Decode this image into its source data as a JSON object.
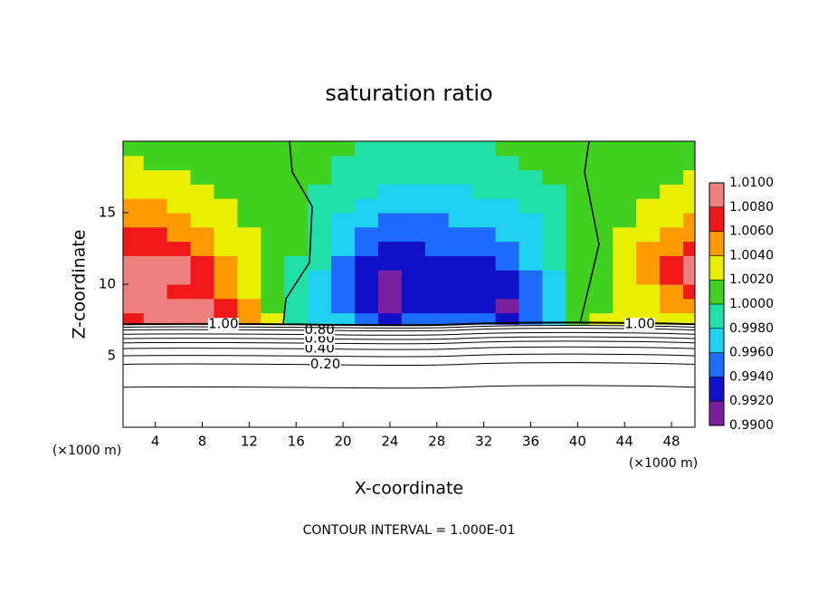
{
  "chart_data": {
    "type": "contour",
    "title": "saturation ratio",
    "x_label": "X-coordinate",
    "y_label": "Z-coordinate",
    "x_unit": "(×1000 m)",
    "footer": "CONTOUR INTERVAL = 1.000E-01",
    "xlim": [
      1.25,
      50
    ],
    "ylim": [
      0,
      20
    ],
    "xticks": [
      4,
      8,
      12,
      16,
      20,
      24,
      28,
      32,
      36,
      40,
      44,
      48
    ],
    "yticks": [
      5,
      10,
      15
    ],
    "x_edges": [
      1.25,
      3,
      5,
      7,
      9,
      11,
      13,
      15,
      17,
      19,
      21,
      23,
      25,
      27,
      29,
      31,
      33,
      35,
      37,
      39,
      41,
      43,
      45,
      47,
      49,
      50
    ],
    "z_edges": [
      7.2,
      8,
      9,
      10,
      11,
      12,
      13,
      14,
      15,
      16,
      17,
      18,
      19,
      20
    ],
    "field": [
      [
        1.007,
        1.009,
        1.009,
        1.008,
        1.007,
        1.005,
        1.002,
        0.999,
        0.997,
        0.996,
        0.994,
        0.993,
        0.994,
        0.995,
        0.995,
        0.994,
        0.993,
        0.995,
        0.997,
        1.0,
        1.002,
        1.003,
        1.003,
        1.003,
        1.003
      ],
      [
        1.009,
        1.009,
        1.008,
        1.008,
        1.006,
        1.004,
        1.001,
        0.999,
        0.997,
        0.995,
        0.993,
        0.991,
        0.993,
        0.993,
        0.993,
        0.992,
        0.991,
        0.994,
        0.997,
        1.0,
        1.001,
        1.002,
        1.003,
        1.004,
        1.005
      ],
      [
        1.008,
        1.008,
        1.007,
        1.007,
        1.005,
        1.003,
        1.001,
        0.999,
        0.997,
        0.995,
        0.992,
        0.991,
        0.992,
        0.993,
        0.993,
        0.992,
        0.992,
        0.995,
        0.997,
        1.0,
        1.001,
        1.002,
        1.003,
        1.005,
        1.007
      ],
      [
        1.009,
        1.009,
        1.008,
        1.007,
        1.005,
        1.003,
        1.001,
        0.999,
        0.997,
        0.994,
        0.992,
        0.991,
        0.992,
        0.992,
        0.993,
        0.992,
        0.993,
        0.995,
        0.997,
        1.0,
        1.001,
        1.002,
        1.004,
        1.006,
        1.008
      ],
      [
        1.008,
        1.008,
        1.008,
        1.006,
        1.004,
        1.002,
        1.001,
        0.999,
        0.998,
        0.995,
        0.993,
        0.992,
        0.992,
        0.993,
        0.993,
        0.993,
        0.994,
        0.996,
        0.998,
        1.0,
        1.001,
        1.003,
        1.004,
        1.006,
        1.008
      ],
      [
        1.007,
        1.007,
        1.006,
        1.005,
        1.003,
        1.002,
        1.001,
        1.0,
        0.998,
        0.996,
        0.994,
        0.993,
        0.993,
        0.994,
        0.994,
        0.994,
        0.995,
        0.996,
        0.998,
        1.0,
        1.001,
        1.002,
        1.004,
        1.005,
        1.006
      ],
      [
        1.006,
        1.006,
        1.005,
        1.004,
        1.003,
        1.002,
        1.001,
        1.0,
        0.999,
        0.997,
        0.995,
        0.994,
        0.994,
        0.994,
        0.995,
        0.995,
        0.996,
        0.997,
        0.998,
        1.0,
        1.001,
        1.002,
        1.003,
        1.004,
        1.005
      ],
      [
        1.005,
        1.005,
        1.004,
        1.003,
        1.002,
        1.001,
        1.001,
        1.0,
        0.999,
        0.997,
        0.996,
        0.995,
        0.995,
        0.995,
        0.996,
        0.996,
        0.996,
        0.997,
        0.999,
        1.0,
        1.001,
        1.001,
        1.002,
        1.003,
        1.004
      ],
      [
        1.004,
        1.004,
        1.003,
        1.002,
        1.002,
        1.001,
        1.001,
        1.0,
        0.999,
        0.998,
        0.997,
        0.996,
        0.996,
        0.996,
        0.996,
        0.997,
        0.997,
        0.998,
        0.999,
        1.0,
        1.001,
        1.001,
        1.002,
        1.002,
        1.003
      ],
      [
        1.003,
        1.003,
        1.002,
        1.002,
        1.001,
        1.001,
        1.001,
        1.0,
        0.999,
        0.999,
        0.998,
        0.997,
        0.997,
        0.997,
        0.997,
        0.998,
        0.998,
        0.999,
        0.999,
        1.0,
        1.001,
        1.001,
        1.001,
        1.002,
        1.002
      ],
      [
        1.002,
        1.002,
        1.002,
        1.001,
        1.001,
        1.001,
        1.001,
        1.0,
        1.0,
        0.999,
        0.999,
        0.998,
        0.998,
        0.998,
        0.998,
        0.998,
        0.999,
        0.999,
        1.0,
        1.0,
        1.001,
        1.001,
        1.001,
        1.001,
        1.002
      ],
      [
        1.002,
        1.001,
        1.001,
        1.001,
        1.001,
        1.001,
        1.001,
        1.0,
        1.0,
        0.999,
        0.999,
        0.999,
        0.999,
        0.999,
        0.999,
        0.999,
        0.999,
        1.0,
        1.0,
        1.0,
        1.001,
        1.001,
        1.001,
        1.001,
        1.001
      ],
      [
        1.001,
        1.001,
        1.001,
        1.001,
        1.001,
        1.001,
        1.001,
        1.0,
        1.0,
        1.0,
        0.999,
        0.999,
        0.999,
        0.999,
        0.999,
        0.999,
        1.0,
        1.0,
        1.0,
        1.0,
        1.001,
        1.001,
        1.001,
        1.001,
        1.001
      ]
    ],
    "colorbar_lim": [
      0.99,
      1.01
    ],
    "colorbar_colors": [
      "#7a1fa0",
      "#1010c8",
      "#1e6cff",
      "#20d0f0",
      "#20e0a8",
      "#40d020",
      "#e8f000",
      "#ff9a00",
      "#f01818",
      "#f08080"
    ],
    "colorbar_ticks": [
      {
        "value": 0.99,
        "label": "0.9900"
      },
      {
        "value": 0.992,
        "label": "0.9920"
      },
      {
        "value": 0.994,
        "label": "0.9940"
      },
      {
        "value": 0.996,
        "label": "0.9960"
      },
      {
        "value": 0.998,
        "label": "0.9980"
      },
      {
        "value": 1.0,
        "label": "1.0000"
      },
      {
        "value": 1.002,
        "label": "1.0020"
      },
      {
        "value": 1.004,
        "label": "1.0040"
      },
      {
        "value": 1.006,
        "label": "1.0060"
      },
      {
        "value": 1.008,
        "label": "1.0080"
      },
      {
        "value": 1.01,
        "label": "1.0100"
      }
    ],
    "contour_levels": [
      0.1,
      0.2,
      0.3,
      0.4,
      0.5,
      0.6,
      0.7,
      0.8,
      0.9,
      1.0
    ],
    "contour_z": [
      2.8,
      4.4,
      5.0,
      5.5,
      5.9,
      6.2,
      6.5,
      6.8,
      7.0,
      7.2
    ],
    "value_labels": [
      null,
      "0.20",
      null,
      "0.40",
      null,
      "0.60",
      null,
      "0.80",
      null,
      "1.00"
    ]
  }
}
